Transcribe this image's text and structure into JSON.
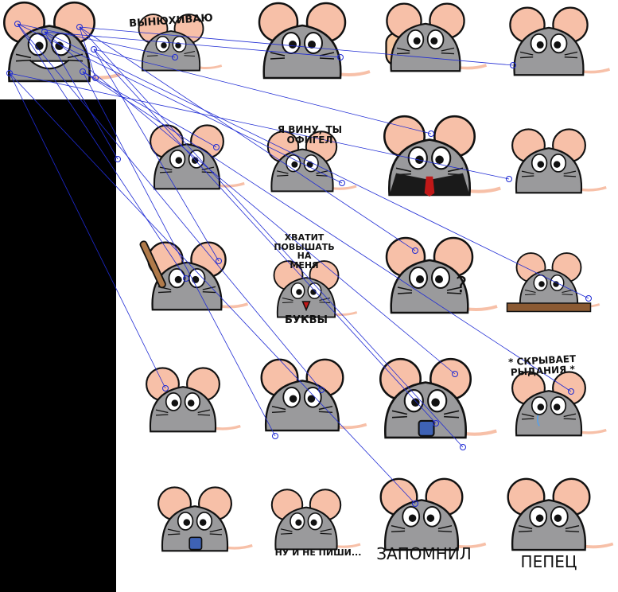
{
  "colors": {
    "body": "#9a9a9c",
    "body_dark": "#7d7d80",
    "ear": "#f7c0a8",
    "outline": "#111111",
    "match_line": "#1f2bd4",
    "panel": "#000000",
    "tie": "#c01818",
    "suit": "#1a1a1a",
    "bat": "#b07a4a",
    "plank": "#8b5a33",
    "cup": "#3e62b5",
    "thumb": "#f6c6a0"
  },
  "captions": {
    "c1": "ВЫНЮХИВАЮ",
    "c2": "Я ВИНУ, ТЫ\nОФИГЕЛ",
    "c3": "ХВАТИТ\nПОВЫШАТЬ\nНА\nМЕНЯ",
    "c4": "БУКВЫ",
    "c5": "* СКРЫВАЕТ\nРЫДАНИЯ *",
    "c6": "НУ И НЕ ПИШИ...",
    "c7": "ЗАПОМНИЛ",
    "c8": "ПЕПЕЦ",
    "c9": "?"
  },
  "stickers": [
    {
      "name": "sticker-grin"
    },
    {
      "name": "sticker-sniffing"
    },
    {
      "name": "sticker-angry"
    },
    {
      "name": "sticker-thumbs-up"
    },
    {
      "name": "sticker-grumpy"
    },
    {
      "name": "sticker-thinking"
    },
    {
      "name": "sticker-lying-down"
    },
    {
      "name": "sticker-suit"
    },
    {
      "name": "sticker-eyebrow"
    },
    {
      "name": "sticker-bat"
    },
    {
      "name": "sticker-shouting"
    },
    {
      "name": "sticker-question"
    },
    {
      "name": "sticker-on-plank"
    },
    {
      "name": "sticker-wide-eyed"
    },
    {
      "name": "sticker-smug"
    },
    {
      "name": "sticker-coffee"
    },
    {
      "name": "sticker-crying"
    },
    {
      "name": "sticker-tea"
    },
    {
      "name": "sticker-walking-away"
    },
    {
      "name": "sticker-remembered"
    },
    {
      "name": "sticker-pepets"
    }
  ]
}
